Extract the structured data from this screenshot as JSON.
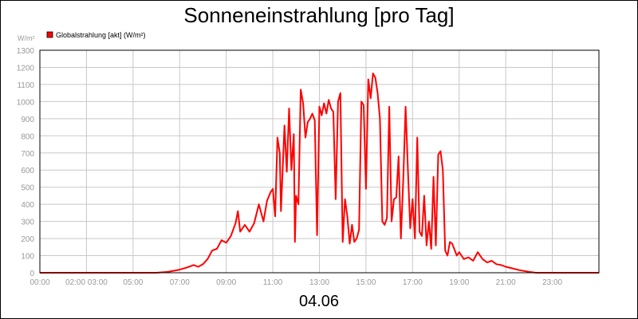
{
  "chart_data": {
    "type": "line",
    "title": "Sonneneinstrahlung [pro Tag]",
    "date_label": "04.06",
    "y_unit": "W/m²",
    "ylim": [
      0,
      1300
    ],
    "y_ticks": [
      0,
      100,
      200,
      300,
      400,
      500,
      600,
      700,
      800,
      900,
      1000,
      1100,
      1200,
      1300
    ],
    "xlim": [
      0,
      24
    ],
    "x_tick_labels": [
      "00:00",
      "02:00 03:00",
      "05:00",
      "07:00",
      "09:00",
      "11:00",
      "13:00",
      "15:00",
      "17:00",
      "19:00",
      "21:00",
      "23:00"
    ],
    "grid": true,
    "legend": "top-left",
    "series": [
      {
        "name": "Globalstrahlung [akt] (W/m²)",
        "color": "#ff0000",
        "points": [
          [
            0.0,
            0
          ],
          [
            5.0,
            0
          ],
          [
            5.5,
            5
          ],
          [
            6.0,
            18
          ],
          [
            6.3,
            30
          ],
          [
            6.6,
            45
          ],
          [
            6.8,
            35
          ],
          [
            7.0,
            50
          ],
          [
            7.2,
            80
          ],
          [
            7.4,
            130
          ],
          [
            7.6,
            140
          ],
          [
            7.8,
            190
          ],
          [
            8.0,
            175
          ],
          [
            8.2,
            215
          ],
          [
            8.4,
            290
          ],
          [
            8.5,
            360
          ],
          [
            8.6,
            240
          ],
          [
            8.8,
            280
          ],
          [
            9.0,
            240
          ],
          [
            9.2,
            290
          ],
          [
            9.4,
            400
          ],
          [
            9.6,
            300
          ],
          [
            9.75,
            420
          ],
          [
            9.9,
            470
          ],
          [
            10.0,
            490
          ],
          [
            10.1,
            330
          ],
          [
            10.2,
            790
          ],
          [
            10.3,
            700
          ],
          [
            10.35,
            360
          ],
          [
            10.5,
            860
          ],
          [
            10.6,
            590
          ],
          [
            10.7,
            960
          ],
          [
            10.8,
            600
          ],
          [
            10.9,
            810
          ],
          [
            10.95,
            180
          ],
          [
            11.0,
            450
          ],
          [
            11.1,
            400
          ],
          [
            11.2,
            1070
          ],
          [
            11.3,
            990
          ],
          [
            11.4,
            790
          ],
          [
            11.5,
            880
          ],
          [
            11.6,
            900
          ],
          [
            11.7,
            930
          ],
          [
            11.8,
            890
          ],
          [
            11.9,
            220
          ],
          [
            12.0,
            970
          ],
          [
            12.1,
            920
          ],
          [
            12.2,
            990
          ],
          [
            12.3,
            930
          ],
          [
            12.4,
            1010
          ],
          [
            12.5,
            960
          ],
          [
            12.6,
            940
          ],
          [
            12.7,
            430
          ],
          [
            12.8,
            1000
          ],
          [
            12.9,
            1050
          ],
          [
            13.0,
            180
          ],
          [
            13.1,
            430
          ],
          [
            13.2,
            330
          ],
          [
            13.3,
            170
          ],
          [
            13.4,
            280
          ],
          [
            13.5,
            180
          ],
          [
            13.6,
            200
          ],
          [
            13.7,
            250
          ],
          [
            13.8,
            1000
          ],
          [
            13.9,
            980
          ],
          [
            14.0,
            490
          ],
          [
            14.1,
            1130
          ],
          [
            14.2,
            1020
          ],
          [
            14.3,
            1165
          ],
          [
            14.4,
            1140
          ],
          [
            14.5,
            1050
          ],
          [
            14.6,
            900
          ],
          [
            14.7,
            300
          ],
          [
            14.8,
            280
          ],
          [
            14.9,
            320
          ],
          [
            15.0,
            970
          ],
          [
            15.1,
            300
          ],
          [
            15.2,
            430
          ],
          [
            15.3,
            440
          ],
          [
            15.4,
            680
          ],
          [
            15.5,
            200
          ],
          [
            15.6,
            550
          ],
          [
            15.7,
            970
          ],
          [
            15.8,
            600
          ],
          [
            15.9,
            260
          ],
          [
            16.0,
            430
          ],
          [
            16.1,
            200
          ],
          [
            16.2,
            790
          ],
          [
            16.3,
            240
          ],
          [
            16.4,
            215
          ],
          [
            16.5,
            450
          ],
          [
            16.6,
            160
          ],
          [
            16.7,
            300
          ],
          [
            16.8,
            140
          ],
          [
            16.9,
            560
          ],
          [
            17.0,
            160
          ],
          [
            17.1,
            690
          ],
          [
            17.2,
            710
          ],
          [
            17.3,
            600
          ],
          [
            17.4,
            130
          ],
          [
            17.5,
            100
          ],
          [
            17.6,
            180
          ],
          [
            17.7,
            170
          ],
          [
            17.9,
            100
          ],
          [
            18.0,
            120
          ],
          [
            18.2,
            80
          ],
          [
            18.4,
            90
          ],
          [
            18.6,
            70
          ],
          [
            18.8,
            120
          ],
          [
            19.0,
            80
          ],
          [
            19.2,
            60
          ],
          [
            19.4,
            70
          ],
          [
            19.6,
            50
          ],
          [
            19.8,
            45
          ],
          [
            20.0,
            35
          ],
          [
            20.3,
            25
          ],
          [
            20.6,
            15
          ],
          [
            21.0,
            5
          ],
          [
            21.3,
            0
          ],
          [
            24.0,
            0
          ]
        ]
      }
    ]
  }
}
